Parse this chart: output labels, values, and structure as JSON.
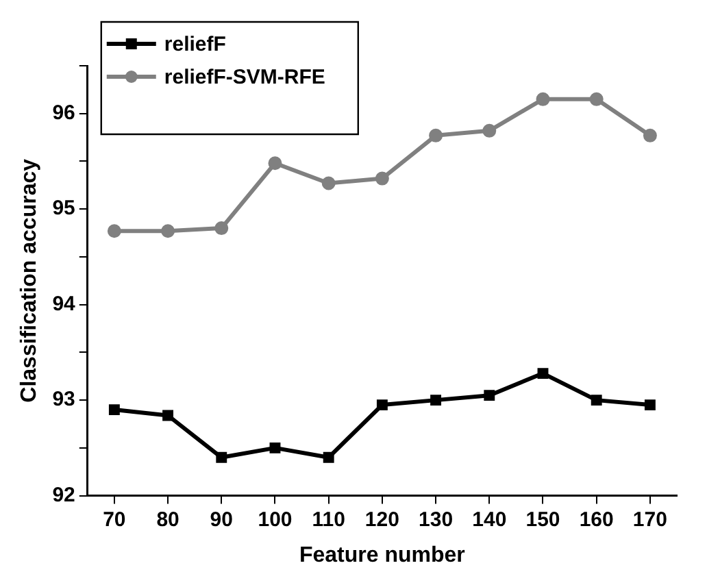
{
  "chart_data": {
    "type": "line",
    "xlabel": "Feature number",
    "ylabel": "Classification accuracy",
    "x": [
      70,
      80,
      90,
      100,
      110,
      120,
      130,
      140,
      150,
      160,
      170
    ],
    "series": [
      {
        "name": "reliefF",
        "color": "#000000",
        "marker": "square",
        "values": [
          92.9,
          92.84,
          92.4,
          92.5,
          92.4,
          92.95,
          93.0,
          93.05,
          93.28,
          93.0,
          92.95
        ]
      },
      {
        "name": "reliefF-SVM-RFE",
        "color": "#808080",
        "marker": "circle",
        "values": [
          94.77,
          94.77,
          94.8,
          95.48,
          95.27,
          95.32,
          95.77,
          95.82,
          96.15,
          96.15,
          95.77
        ]
      }
    ],
    "xlim": [
      65,
      175
    ],
    "xticks": [
      70,
      80,
      90,
      100,
      110,
      120,
      130,
      140,
      150,
      160,
      170
    ],
    "ylim": [
      92,
      96.5
    ],
    "yticks": [
      92,
      {
        "value": 92.5,
        "label": null
      },
      93,
      {
        "value": 93.5,
        "label": null
      },
      94,
      {
        "value": 94.5,
        "label": null
      },
      95,
      {
        "value": 95.5,
        "label": null
      },
      96,
      {
        "value": 96.5,
        "label": null
      }
    ],
    "grid": false,
    "legend": "top left",
    "line_style": "solid"
  }
}
